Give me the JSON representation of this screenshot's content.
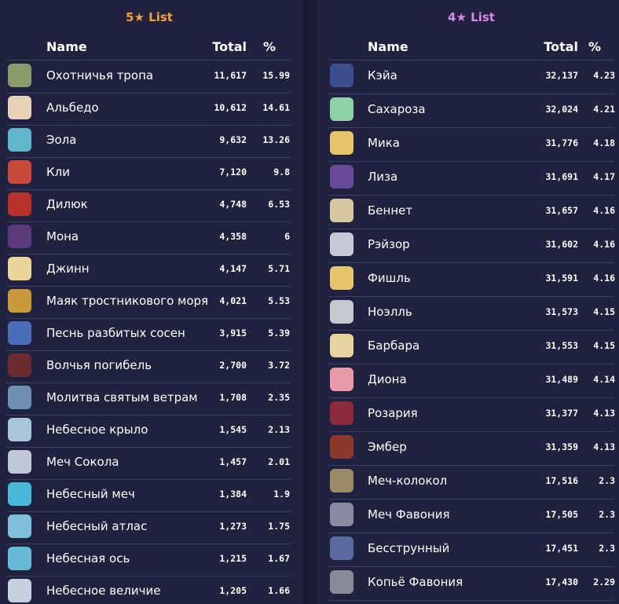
{
  "tables": [
    {
      "title": "5★ List",
      "columns": [
        "Name",
        "Total",
        "%"
      ],
      "rows": [
        [
          "Охотничья тропа",
          "11,617",
          "15.99"
        ],
        [
          "Альбедо",
          "10,612",
          "14.61"
        ],
        [
          "Эола",
          "9,632",
          "13.26"
        ],
        [
          "Кли",
          "7,120",
          "9.8"
        ],
        [
          "Дилюк",
          "4,748",
          "6.53"
        ],
        [
          "Мона",
          "4,358",
          "6"
        ],
        [
          "Джинн",
          "4,147",
          "5.71"
        ],
        [
          "Маяк тростникового моря",
          "4,021",
          "5.53"
        ],
        [
          "Песнь разбитых сосен",
          "3,915",
          "5.39"
        ],
        [
          "Волчья погибель",
          "2,700",
          "3.72"
        ],
        [
          "Молитва святым ветрам",
          "1,708",
          "2.35"
        ],
        [
          "Небесное крыло",
          "1,545",
          "2.13"
        ],
        [
          "Меч Сокола",
          "1,457",
          "2.01"
        ],
        [
          "Небесный меч",
          "1,384",
          "1.9"
        ],
        [
          "Небесный атлас",
          "1,273",
          "1.75"
        ],
        [
          "Небесная ось",
          "1,215",
          "1.67"
        ],
        [
          "Небесное величие",
          "1,205",
          "1.66"
        ]
      ]
    },
    {
      "title": "4★ List",
      "columns": [
        "Name",
        "Total",
        "%"
      ],
      "rows": [
        [
          "Кэйа",
          "32,137",
          "4.23"
        ],
        [
          "Сахароза",
          "32,024",
          "4.21"
        ],
        [
          "Мика",
          "31,776",
          "4.18"
        ],
        [
          "Лиза",
          "31,691",
          "4.17"
        ],
        [
          "Беннет",
          "31,657",
          "4.16"
        ],
        [
          "Рэйзор",
          "31,602",
          "4.16"
        ],
        [
          "Фишль",
          "31,591",
          "4.16"
        ],
        [
          "Ноэлль",
          "31,573",
          "4.15"
        ],
        [
          "Барбара",
          "31,553",
          "4.15"
        ],
        [
          "Диона",
          "31,489",
          "4.14"
        ],
        [
          "Розария",
          "31,377",
          "4.13"
        ],
        [
          "Эмбер",
          "31,359",
          "4.13"
        ],
        [
          "Меч-колокол",
          "17,516",
          "2.3"
        ],
        [
          "Меч Фавония",
          "17,505",
          "2.3"
        ],
        [
          "Бесструнный",
          "17,451",
          "2.3"
        ],
        [
          "Копьё Фавония",
          "17,430",
          "2.29"
        ]
      ]
    }
  ]
}
